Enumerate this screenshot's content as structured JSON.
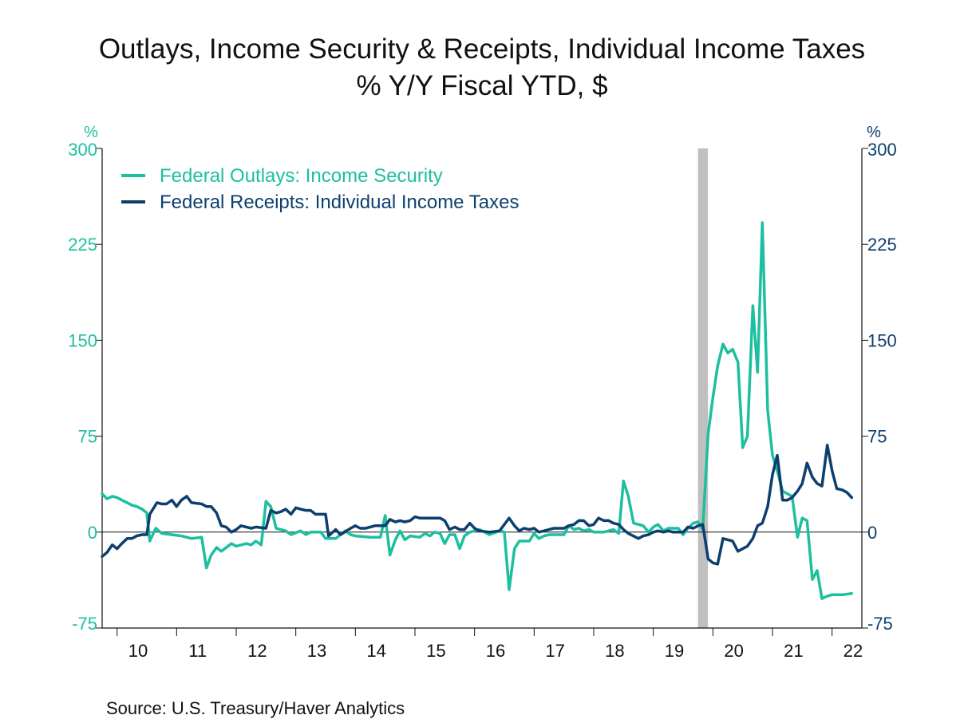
{
  "title_line1": "Outlays, Income Security & Receipts, Individual Income Taxes",
  "title_line2": "% Y/Y   Fiscal YTD, $",
  "source": "Source:  U.S. Treasury/Haver Analytics",
  "colors": {
    "outlays": "#1dbf9f",
    "receipts": "#0d3f6e",
    "recession": "#c0c0c0",
    "axis": "#111111"
  },
  "chart_data": {
    "type": "line",
    "left_unit": "%",
    "right_unit": "%",
    "ylim": [
      -75,
      300
    ],
    "y_ticks": [
      300,
      225,
      150,
      75,
      0,
      -75
    ],
    "y_tick_labels": [
      "300",
      "225",
      "150",
      "75",
      "0",
      "-75"
    ],
    "xlim": [
      2009.75,
      2022.5
    ],
    "x_tick_labels": [
      "10",
      "11",
      "12",
      "13",
      "14",
      "15",
      "16",
      "17",
      "18",
      "19",
      "20",
      "21",
      "22"
    ],
    "recession": [
      2019.75,
      2019.917
    ],
    "legend_position": "top-left",
    "series": [
      {
        "name": "Federal Outlays: Income Security",
        "color": "#1dbf9f",
        "points": [
          [
            2009.75,
            30
          ],
          [
            2009.83,
            26
          ],
          [
            2009.92,
            28
          ],
          [
            2010.0,
            27
          ],
          [
            2010.08,
            25
          ],
          [
            2010.17,
            23
          ],
          [
            2010.25,
            21
          ],
          [
            2010.33,
            20
          ],
          [
            2010.42,
            18
          ],
          [
            2010.5,
            15
          ],
          [
            2010.55,
            -7
          ],
          [
            2010.65,
            3
          ],
          [
            2010.75,
            -1
          ],
          [
            2010.92,
            -2
          ],
          [
            2011.08,
            -3
          ],
          [
            2011.25,
            -5
          ],
          [
            2011.42,
            -4
          ],
          [
            2011.5,
            -28
          ],
          [
            2011.58,
            -18
          ],
          [
            2011.67,
            -12
          ],
          [
            2011.75,
            -15
          ],
          [
            2011.92,
            -9
          ],
          [
            2012.0,
            -11
          ],
          [
            2012.17,
            -9
          ],
          [
            2012.25,
            -10
          ],
          [
            2012.33,
            -7
          ],
          [
            2012.42,
            -10
          ],
          [
            2012.5,
            24
          ],
          [
            2012.58,
            20
          ],
          [
            2012.67,
            3
          ],
          [
            2012.83,
            1
          ],
          [
            2012.92,
            -2
          ],
          [
            2013.08,
            1
          ],
          [
            2013.17,
            -2
          ],
          [
            2013.25,
            0
          ],
          [
            2013.42,
            0
          ],
          [
            2013.5,
            -5
          ],
          [
            2013.67,
            -5
          ],
          [
            2013.83,
            1
          ],
          [
            2013.92,
            -2
          ],
          [
            2014.0,
            -3
          ],
          [
            2014.25,
            -4
          ],
          [
            2014.42,
            -4
          ],
          [
            2014.5,
            13
          ],
          [
            2014.58,
            -18
          ],
          [
            2014.67,
            -6
          ],
          [
            2014.75,
            1
          ],
          [
            2014.83,
            -6
          ],
          [
            2014.92,
            -3
          ],
          [
            2015.08,
            -4
          ],
          [
            2015.17,
            -1
          ],
          [
            2015.25,
            -3
          ],
          [
            2015.33,
            0
          ],
          [
            2015.42,
            -1
          ],
          [
            2015.5,
            -9
          ],
          [
            2015.58,
            -2
          ],
          [
            2015.67,
            -2
          ],
          [
            2015.75,
            -13
          ],
          [
            2015.83,
            -3
          ],
          [
            2015.92,
            0
          ],
          [
            2016.08,
            2
          ],
          [
            2016.17,
            0
          ],
          [
            2016.25,
            -2
          ],
          [
            2016.42,
            1
          ],
          [
            2016.5,
            0
          ],
          [
            2016.58,
            -45
          ],
          [
            2016.67,
            -13
          ],
          [
            2016.75,
            -7
          ],
          [
            2016.92,
            -7
          ],
          [
            2017.0,
            -1
          ],
          [
            2017.08,
            -5
          ],
          [
            2017.17,
            -3
          ],
          [
            2017.25,
            -2
          ],
          [
            2017.5,
            -2
          ],
          [
            2017.58,
            5
          ],
          [
            2017.67,
            2
          ],
          [
            2017.75,
            3
          ],
          [
            2017.83,
            1
          ],
          [
            2017.92,
            2
          ],
          [
            2018.0,
            0
          ],
          [
            2018.17,
            0
          ],
          [
            2018.33,
            2
          ],
          [
            2018.42,
            -1
          ],
          [
            2018.5,
            40
          ],
          [
            2018.58,
            28
          ],
          [
            2018.67,
            7
          ],
          [
            2018.83,
            5
          ],
          [
            2018.92,
            0
          ],
          [
            2019.0,
            4
          ],
          [
            2019.08,
            6
          ],
          [
            2019.17,
            1
          ],
          [
            2019.25,
            3
          ],
          [
            2019.42,
            3
          ],
          [
            2019.5,
            -2
          ],
          [
            2019.58,
            3
          ],
          [
            2019.67,
            7
          ],
          [
            2019.75,
            8
          ],
          [
            2019.83,
            2
          ],
          [
            2019.92,
            77
          ],
          [
            2020.0,
            105
          ],
          [
            2020.08,
            130
          ],
          [
            2020.17,
            147
          ],
          [
            2020.25,
            140
          ],
          [
            2020.33,
            143
          ],
          [
            2020.42,
            133
          ],
          [
            2020.5,
            66
          ],
          [
            2020.58,
            75
          ],
          [
            2020.67,
            177
          ],
          [
            2020.75,
            125
          ],
          [
            2020.83,
            242
          ],
          [
            2020.92,
            95
          ],
          [
            2021.0,
            60
          ],
          [
            2021.08,
            48
          ],
          [
            2021.17,
            32
          ],
          [
            2021.33,
            28
          ],
          [
            2021.42,
            -4
          ],
          [
            2021.5,
            11
          ],
          [
            2021.58,
            9
          ],
          [
            2021.67,
            -37
          ],
          [
            2021.75,
            -30
          ],
          [
            2021.83,
            -52
          ],
          [
            2021.92,
            -50
          ],
          [
            2022.0,
            -49
          ],
          [
            2022.17,
            -49
          ],
          [
            2022.33,
            -48
          ]
        ]
      },
      {
        "name": "Federal Receipts: Individual Income Taxes",
        "color": "#0d3f6e",
        "points": [
          [
            2009.75,
            -19
          ],
          [
            2009.83,
            -16
          ],
          [
            2009.92,
            -10
          ],
          [
            2010.0,
            -13
          ],
          [
            2010.08,
            -9
          ],
          [
            2010.17,
            -5
          ],
          [
            2010.25,
            -5
          ],
          [
            2010.33,
            -3
          ],
          [
            2010.42,
            -2
          ],
          [
            2010.5,
            -2
          ],
          [
            2010.55,
            14
          ],
          [
            2010.67,
            23
          ],
          [
            2010.75,
            22
          ],
          [
            2010.83,
            22
          ],
          [
            2010.92,
            25
          ],
          [
            2011.0,
            20
          ],
          [
            2011.08,
            25
          ],
          [
            2011.17,
            28
          ],
          [
            2011.25,
            23
          ],
          [
            2011.42,
            22
          ],
          [
            2011.5,
            20
          ],
          [
            2011.58,
            20
          ],
          [
            2011.67,
            15
          ],
          [
            2011.75,
            5
          ],
          [
            2011.83,
            4
          ],
          [
            2011.92,
            0
          ],
          [
            2012.0,
            2
          ],
          [
            2012.08,
            5
          ],
          [
            2012.25,
            3
          ],
          [
            2012.33,
            4
          ],
          [
            2012.5,
            3
          ],
          [
            2012.58,
            17
          ],
          [
            2012.67,
            15
          ],
          [
            2012.75,
            16
          ],
          [
            2012.83,
            18
          ],
          [
            2012.92,
            14
          ],
          [
            2013.0,
            19
          ],
          [
            2013.08,
            18
          ],
          [
            2013.17,
            17
          ],
          [
            2013.25,
            17
          ],
          [
            2013.33,
            14
          ],
          [
            2013.5,
            14
          ],
          [
            2013.55,
            -3
          ],
          [
            2013.67,
            2
          ],
          [
            2013.75,
            -2
          ],
          [
            2013.92,
            3
          ],
          [
            2014.0,
            5
          ],
          [
            2014.08,
            3
          ],
          [
            2014.17,
            3
          ],
          [
            2014.33,
            5
          ],
          [
            2014.5,
            5
          ],
          [
            2014.58,
            10
          ],
          [
            2014.67,
            8
          ],
          [
            2014.75,
            9
          ],
          [
            2014.83,
            8
          ],
          [
            2014.92,
            9
          ],
          [
            2015.0,
            12
          ],
          [
            2015.08,
            11
          ],
          [
            2015.17,
            11
          ],
          [
            2015.33,
            11
          ],
          [
            2015.42,
            11
          ],
          [
            2015.5,
            9
          ],
          [
            2015.58,
            2
          ],
          [
            2015.67,
            4
          ],
          [
            2015.75,
            2
          ],
          [
            2015.83,
            2
          ],
          [
            2015.92,
            7
          ],
          [
            2016.0,
            3
          ],
          [
            2016.08,
            1
          ],
          [
            2016.25,
            0
          ],
          [
            2016.42,
            1
          ],
          [
            2016.58,
            11
          ],
          [
            2016.67,
            5
          ],
          [
            2016.75,
            1
          ],
          [
            2016.83,
            3
          ],
          [
            2016.92,
            2
          ],
          [
            2017.0,
            3
          ],
          [
            2017.08,
            0
          ],
          [
            2017.25,
            2
          ],
          [
            2017.33,
            3
          ],
          [
            2017.5,
            3
          ],
          [
            2017.58,
            5
          ],
          [
            2017.67,
            6
          ],
          [
            2017.75,
            9
          ],
          [
            2017.83,
            9
          ],
          [
            2017.92,
            5
          ],
          [
            2018.0,
            6
          ],
          [
            2018.08,
            11
          ],
          [
            2018.17,
            9
          ],
          [
            2018.25,
            9
          ],
          [
            2018.33,
            7
          ],
          [
            2018.42,
            6
          ],
          [
            2018.5,
            2
          ],
          [
            2018.58,
            -1
          ],
          [
            2018.75,
            -5
          ],
          [
            2018.83,
            -3
          ],
          [
            2018.92,
            -2
          ],
          [
            2019.0,
            0
          ],
          [
            2019.08,
            1
          ],
          [
            2019.17,
            0
          ],
          [
            2019.25,
            1
          ],
          [
            2019.33,
            0
          ],
          [
            2019.5,
            0
          ],
          [
            2019.58,
            4
          ],
          [
            2019.67,
            3
          ],
          [
            2019.75,
            5
          ],
          [
            2019.83,
            6
          ],
          [
            2019.92,
            -21
          ],
          [
            2020.0,
            -24
          ],
          [
            2020.08,
            -25
          ],
          [
            2020.17,
            -5
          ],
          [
            2020.25,
            -6
          ],
          [
            2020.33,
            -7
          ],
          [
            2020.42,
            -15
          ],
          [
            2020.5,
            -13
          ],
          [
            2020.58,
            -11
          ],
          [
            2020.67,
            -5
          ],
          [
            2020.75,
            5
          ],
          [
            2020.83,
            7
          ],
          [
            2020.92,
            20
          ],
          [
            2021.0,
            45
          ],
          [
            2021.08,
            60
          ],
          [
            2021.17,
            25
          ],
          [
            2021.25,
            25
          ],
          [
            2021.33,
            27
          ],
          [
            2021.42,
            32
          ],
          [
            2021.5,
            38
          ],
          [
            2021.58,
            54
          ],
          [
            2021.67,
            43
          ],
          [
            2021.75,
            38
          ],
          [
            2021.83,
            36
          ],
          [
            2021.92,
            68
          ],
          [
            2022.0,
            48
          ],
          [
            2022.08,
            34
          ],
          [
            2022.17,
            33
          ],
          [
            2022.25,
            31
          ],
          [
            2022.33,
            27
          ]
        ]
      }
    ]
  }
}
